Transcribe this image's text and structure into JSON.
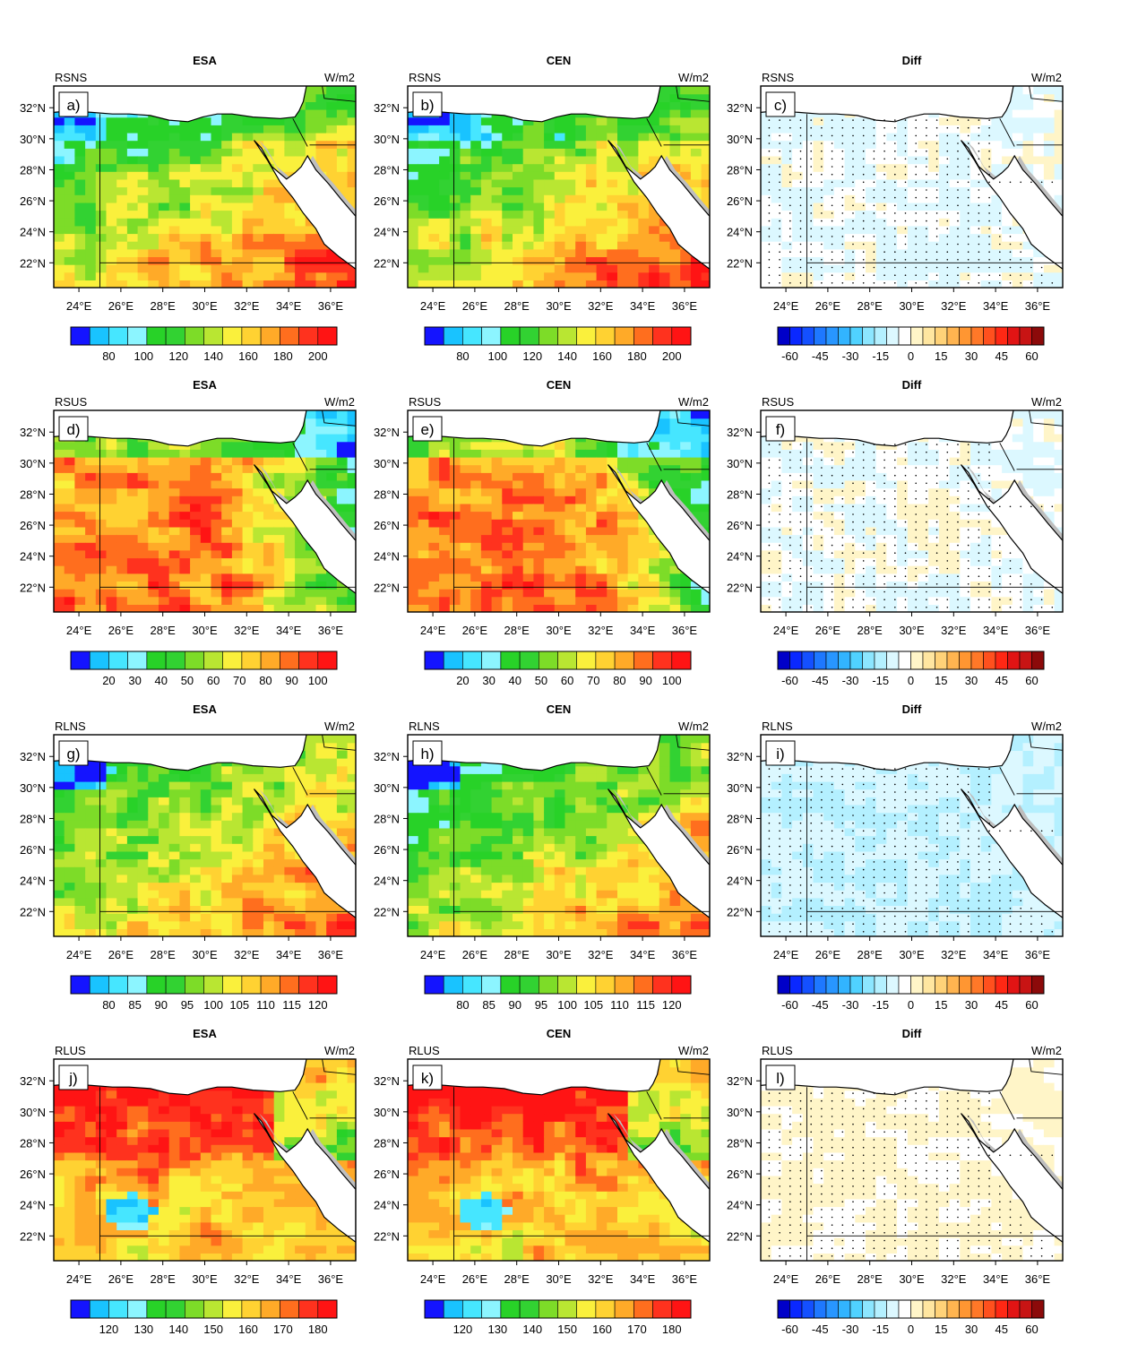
{
  "lat_labels": [
    "32°N",
    "30°N",
    "28°N",
    "26°N",
    "24°N",
    "22°N"
  ],
  "lon_labels": [
    "24°E",
    "26°E",
    "28°E",
    "30°E",
    "32°E",
    "34°E",
    "36°E"
  ],
  "columns": [
    {
      "title": "ESA",
      "kind": "abs"
    },
    {
      "title": "CEN",
      "kind": "abs"
    },
    {
      "title": "Diff",
      "kind": "diff"
    }
  ],
  "rows": [
    {
      "variable": "RSNS",
      "unit": "W/m2",
      "panel_labels": [
        "a)",
        "b)",
        "c)"
      ],
      "colorbar_labels": [
        "80",
        "100",
        "120",
        "140",
        "160",
        "180",
        "200"
      ]
    },
    {
      "variable": "RSUS",
      "unit": "W/m2",
      "panel_labels": [
        "d)",
        "e)",
        "f)"
      ],
      "colorbar_labels": [
        "20",
        "30",
        "40",
        "50",
        "60",
        "70",
        "80",
        "90",
        "100"
      ]
    },
    {
      "variable": "RLNS",
      "unit": "W/m2",
      "panel_labels": [
        "g)",
        "h)",
        "i)"
      ],
      "colorbar_labels": [
        "80",
        "85",
        "90",
        "95",
        "100",
        "105",
        "110",
        "115",
        "120"
      ]
    },
    {
      "variable": "RLUS",
      "unit": "W/m2",
      "panel_labels": [
        "j)",
        "k)",
        "l)"
      ],
      "colorbar_labels": [
        "120",
        "130",
        "140",
        "150",
        "160",
        "170",
        "180"
      ]
    }
  ],
  "diff_colorbar_labels": [
    "-60",
    "-45",
    "-30",
    "-15",
    "0",
    "15",
    "30",
    "45",
    "60"
  ],
  "colors": {
    "abs_scale": [
      "#1414ff",
      "#19c3ff",
      "#46e6ff",
      "#8cf5ff",
      "#28d228",
      "#32d232",
      "#7ddc28",
      "#b9e632",
      "#faf03c",
      "#ffd232",
      "#ffaa28",
      "#ff6e1e",
      "#ff321e",
      "#ff1414"
    ],
    "diff_scale": [
      "#0000c8",
      "#0a28ff",
      "#1450ff",
      "#1e78ff",
      "#2896ff",
      "#32b4ff",
      "#50d2ff",
      "#8ce6ff",
      "#b4f0ff",
      "#dcf8ff",
      "#ffffff",
      "#fff5c8",
      "#ffe6a0",
      "#ffd278",
      "#ffb450",
      "#ff9632",
      "#ff7828",
      "#ff501e",
      "#ff2814",
      "#e11414",
      "#c81414",
      "#8c0a0a"
    ],
    "land_missing": "#bebebe",
    "sea": "#ffffff"
  }
}
